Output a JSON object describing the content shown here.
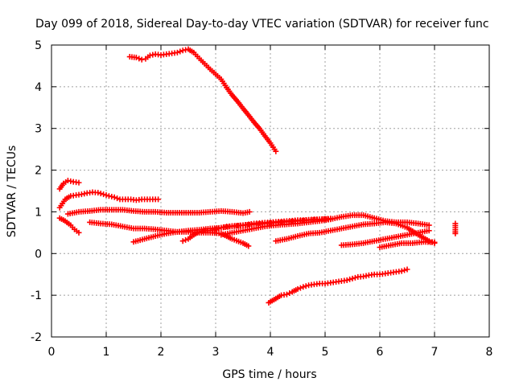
{
  "chart_data": {
    "type": "scatter",
    "title": "Day 099 of 2018, Sidereal Day-to-day VTEC variation (SDTVAR) for receiver func",
    "xlabel": "GPS time / hours",
    "ylabel": "SDTVAR / TECUs",
    "xlim": [
      0,
      8
    ],
    "ylim": [
      -2,
      5
    ],
    "x_ticks": [
      "0",
      "1",
      "2",
      "3",
      "4",
      "5",
      "6",
      "7",
      "8"
    ],
    "y_ticks": [
      "-2",
      "-1",
      "0",
      "1",
      "2",
      "3",
      "4",
      "5"
    ],
    "grid": true,
    "legend": "none",
    "marker": "plus",
    "color": "#ff0000",
    "series": [
      {
        "x": [
          1.43,
          1.55,
          1.65,
          1.72,
          1.8,
          1.9,
          2.0,
          2.1,
          2.2,
          2.3,
          2.4,
          2.5,
          2.6,
          2.7,
          2.8,
          2.9,
          3.0,
          3.1,
          3.2,
          3.3,
          3.4,
          3.5,
          3.6,
          3.7,
          3.8,
          3.9,
          4.0,
          4.1
        ],
        "y": [
          4.72,
          4.7,
          4.65,
          4.67,
          4.75,
          4.78,
          4.76,
          4.78,
          4.8,
          4.82,
          4.87,
          4.9,
          4.82,
          4.68,
          4.55,
          4.42,
          4.3,
          4.18,
          3.98,
          3.8,
          3.65,
          3.48,
          3.32,
          3.15,
          3.0,
          2.82,
          2.65,
          2.45
        ]
      },
      {
        "x": [
          0.15,
          0.25,
          0.35,
          0.45,
          0.55,
          0.65,
          0.75,
          0.85,
          0.95,
          1.05,
          1.15,
          1.25,
          1.35,
          1.45,
          1.55,
          1.65,
          1.75,
          1.85,
          1.95
        ],
        "y": [
          1.1,
          1.3,
          1.38,
          1.4,
          1.42,
          1.45,
          1.47,
          1.46,
          1.42,
          1.38,
          1.35,
          1.3,
          1.3,
          1.3,
          1.28,
          1.3,
          1.3,
          1.3,
          1.3
        ]
      },
      {
        "x": [
          0.15,
          0.22,
          0.3,
          0.4,
          0.5
        ],
        "y": [
          1.55,
          1.68,
          1.75,
          1.72,
          1.7
        ]
      },
      {
        "x": [
          0.15,
          0.25,
          0.35,
          0.42,
          0.5
        ],
        "y": [
          0.85,
          0.78,
          0.68,
          0.58,
          0.5
        ]
      },
      {
        "x": [
          0.3,
          0.5,
          0.7,
          0.9,
          1.1,
          1.3,
          1.5,
          1.7,
          1.9,
          2.1,
          2.3,
          2.5,
          2.7,
          2.9,
          3.1,
          3.3,
          3.5,
          3.62
        ],
        "y": [
          0.95,
          1.0,
          1.02,
          1.05,
          1.05,
          1.05,
          1.02,
          1.0,
          1.0,
          0.98,
          0.98,
          0.98,
          0.98,
          1.0,
          1.02,
          1.0,
          0.97,
          1.0
        ]
      },
      {
        "x": [
          0.7,
          0.9,
          1.1,
          1.3,
          1.5,
          1.7,
          1.9,
          2.1,
          2.3,
          2.5,
          2.7,
          2.9,
          3.1,
          3.3,
          3.5,
          3.6
        ],
        "y": [
          0.75,
          0.72,
          0.7,
          0.65,
          0.6,
          0.6,
          0.58,
          0.55,
          0.52,
          0.52,
          0.5,
          0.5,
          0.48,
          0.35,
          0.25,
          0.18
        ]
      },
      {
        "x": [
          1.5,
          1.7,
          1.9,
          2.1,
          2.3,
          2.5,
          2.7,
          2.9,
          3.1,
          3.3,
          3.5,
          3.7,
          3.9,
          4.1,
          4.3,
          4.5,
          4.7,
          4.9,
          5.1
        ],
        "y": [
          0.28,
          0.35,
          0.42,
          0.48,
          0.52,
          0.55,
          0.57,
          0.6,
          0.62,
          0.65,
          0.68,
          0.7,
          0.72,
          0.74,
          0.76,
          0.78,
          0.8,
          0.82,
          0.83
        ]
      },
      {
        "x": [
          2.4,
          2.5,
          2.6,
          2.7,
          2.8,
          2.9,
          3.0,
          3.1,
          3.2,
          3.3,
          3.4,
          3.5,
          3.6,
          3.7,
          3.8,
          3.9,
          4.0,
          4.1,
          4.2,
          4.3,
          4.4,
          4.5,
          4.6,
          4.7,
          4.8,
          4.9,
          5.0,
          5.1
        ],
        "y": [
          0.3,
          0.35,
          0.45,
          0.52,
          0.55,
          0.55,
          0.58,
          0.62,
          0.65,
          0.66,
          0.67,
          0.68,
          0.7,
          0.72,
          0.73,
          0.74,
          0.75,
          0.76,
          0.77,
          0.78,
          0.79,
          0.8,
          0.8,
          0.81,
          0.82,
          0.82,
          0.83,
          0.84
        ]
      },
      {
        "x": [
          4.1,
          4.3,
          4.5,
          4.7,
          4.9,
          5.1,
          5.3,
          5.5,
          5.7,
          5.9,
          6.1,
          6.3,
          6.5,
          6.7,
          6.9,
          7.0
        ],
        "y": [
          0.3,
          0.35,
          0.42,
          0.48,
          0.5,
          0.55,
          0.6,
          0.65,
          0.7,
          0.72,
          0.75,
          0.72,
          0.62,
          0.45,
          0.3,
          0.25
        ]
      },
      {
        "x": [
          3.1,
          3.3,
          3.5,
          3.7,
          3.9,
          4.1,
          4.3,
          4.5,
          4.7,
          4.9,
          5.1,
          5.3,
          5.5,
          5.7,
          5.9,
          6.1,
          6.3,
          6.5,
          6.7,
          6.9
        ],
        "y": [
          0.45,
          0.5,
          0.55,
          0.6,
          0.65,
          0.68,
          0.7,
          0.72,
          0.75,
          0.78,
          0.82,
          0.88,
          0.92,
          0.92,
          0.85,
          0.78,
          0.75,
          0.75,
          0.72,
          0.68
        ]
      },
      {
        "x": [
          5.3,
          5.5,
          5.7,
          5.9,
          6.1,
          6.3,
          6.5,
          6.7,
          6.9
        ],
        "y": [
          0.2,
          0.22,
          0.25,
          0.3,
          0.35,
          0.4,
          0.45,
          0.5,
          0.55
        ]
      },
      {
        "x": [
          6.0,
          6.2,
          6.4,
          6.6,
          6.8,
          7.0
        ],
        "y": [
          0.15,
          0.2,
          0.25,
          0.25,
          0.28,
          0.27
        ]
      },
      {
        "x": [
          3.97,
          4.1,
          4.2,
          4.3,
          4.4,
          4.5,
          4.6,
          4.7,
          4.8,
          4.9,
          5.0,
          5.1,
          5.2,
          5.3,
          5.4,
          5.5,
          5.6,
          5.7,
          5.8,
          5.9,
          6.0,
          6.1,
          6.2,
          6.3,
          6.4,
          6.5
        ],
        "y": [
          -1.18,
          -1.08,
          -1.0,
          -0.98,
          -0.92,
          -0.85,
          -0.8,
          -0.76,
          -0.74,
          -0.72,
          -0.72,
          -0.7,
          -0.68,
          -0.66,
          -0.64,
          -0.6,
          -0.56,
          -0.55,
          -0.52,
          -0.5,
          -0.5,
          -0.48,
          -0.46,
          -0.44,
          -0.42,
          -0.38
        ]
      },
      {
        "x": [
          7.38,
          7.38,
          7.38
        ],
        "y": [
          0.72,
          0.52,
          0.48
        ]
      }
    ]
  }
}
